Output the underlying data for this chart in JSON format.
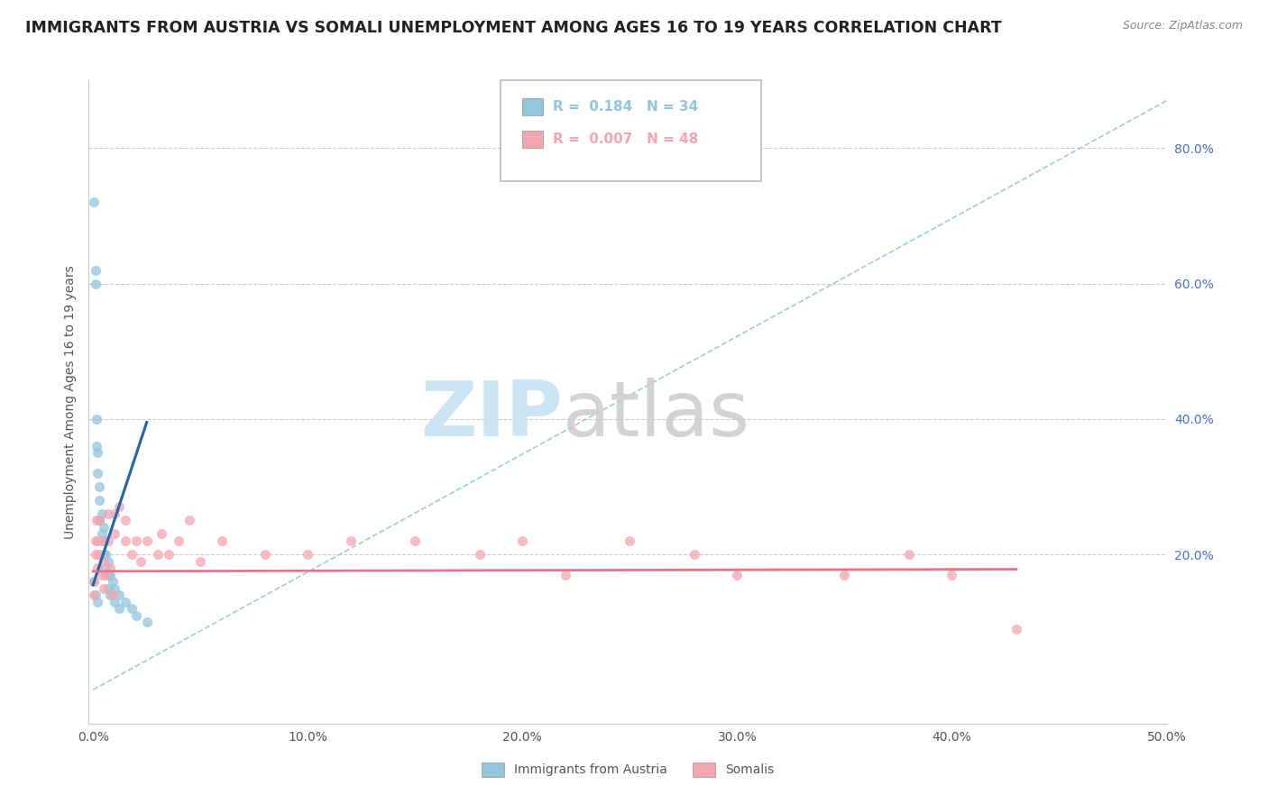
{
  "title": "IMMIGRANTS FROM AUSTRIA VS SOMALI UNEMPLOYMENT AMONG AGES 16 TO 19 YEARS CORRELATION CHART",
  "source": "Source: ZipAtlas.com",
  "ylabel": "Unemployment Among Ages 16 to 19 years",
  "ytick_values": [
    0.2,
    0.4,
    0.6,
    0.8
  ],
  "ytick_labels": [
    "20.0%",
    "40.0%",
    "60.0%",
    "80.0%"
  ],
  "xlim": [
    -0.002,
    0.5
  ],
  "ylim": [
    -0.05,
    0.9
  ],
  "austria_color": "#92c5de",
  "somali_color": "#f4a6b0",
  "austria_line_color": "#2166ac",
  "somali_line_color": "#e8748a",
  "ref_line_color": "#9ecae1",
  "grid_color": "#cccccc",
  "background_color": "#ffffff",
  "title_fontsize": 12.5,
  "source_fontsize": 9,
  "axis_label_fontsize": 10,
  "tick_fontsize": 10,
  "ytick_color": "#4472c4",
  "legend_r1": "R =  0.184   N = 34",
  "legend_r2": "R =  0.007   N = 48",
  "legend_label1": "Immigrants from Austria",
  "legend_label2": "Somalis",
  "austria_x": [
    0.0002,
    0.0005,
    0.001,
    0.001,
    0.0015,
    0.0015,
    0.002,
    0.002,
    0.003,
    0.003,
    0.003,
    0.004,
    0.004,
    0.005,
    0.005,
    0.005,
    0.006,
    0.006,
    0.007,
    0.007,
    0.007,
    0.008,
    0.008,
    0.009,
    0.01,
    0.01,
    0.012,
    0.012,
    0.015,
    0.018,
    0.02,
    0.025,
    0.001,
    0.002
  ],
  "austria_y": [
    0.72,
    0.16,
    0.62,
    0.6,
    0.4,
    0.36,
    0.35,
    0.32,
    0.3,
    0.28,
    0.25,
    0.26,
    0.23,
    0.24,
    0.22,
    0.2,
    0.2,
    0.18,
    0.19,
    0.17,
    0.15,
    0.17,
    0.14,
    0.16,
    0.15,
    0.13,
    0.14,
    0.12,
    0.13,
    0.12,
    0.11,
    0.1,
    0.14,
    0.13
  ],
  "somali_x": [
    0.0002,
    0.0005,
    0.001,
    0.001,
    0.0015,
    0.002,
    0.002,
    0.003,
    0.003,
    0.004,
    0.004,
    0.005,
    0.005,
    0.006,
    0.007,
    0.007,
    0.008,
    0.009,
    0.01,
    0.01,
    0.012,
    0.015,
    0.015,
    0.018,
    0.02,
    0.022,
    0.025,
    0.03,
    0.032,
    0.035,
    0.04,
    0.045,
    0.05,
    0.06,
    0.08,
    0.1,
    0.12,
    0.15,
    0.18,
    0.2,
    0.22,
    0.25,
    0.28,
    0.3,
    0.35,
    0.38,
    0.4,
    0.43
  ],
  "somali_y": [
    0.16,
    0.14,
    0.22,
    0.2,
    0.25,
    0.22,
    0.18,
    0.25,
    0.2,
    0.22,
    0.17,
    0.19,
    0.15,
    0.17,
    0.26,
    0.22,
    0.18,
    0.14,
    0.26,
    0.23,
    0.27,
    0.25,
    0.22,
    0.2,
    0.22,
    0.19,
    0.22,
    0.2,
    0.23,
    0.2,
    0.22,
    0.25,
    0.19,
    0.22,
    0.2,
    0.2,
    0.22,
    0.22,
    0.2,
    0.22,
    0.17,
    0.22,
    0.2,
    0.17,
    0.17,
    0.2,
    0.17,
    0.09
  ],
  "austria_line_x": [
    0.0,
    0.025
  ],
  "austria_line_y": [
    0.155,
    0.395
  ],
  "somali_line_x": [
    0.0,
    0.43
  ],
  "somali_line_y": [
    0.175,
    0.178
  ],
  "ref_line_x": [
    0.0,
    0.5
  ],
  "ref_line_y": [
    0.0,
    0.87
  ]
}
